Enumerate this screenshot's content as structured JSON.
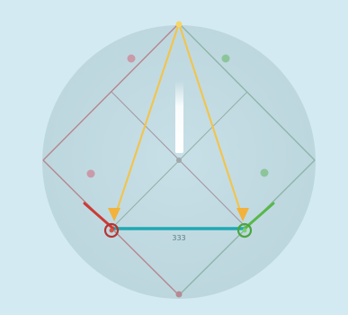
{
  "diagram": {
    "segment_label": "333",
    "colors": {
      "background": "#d4eaf2",
      "disc": "#c4dde5",
      "outline_left": "#b5878c",
      "outline_right": "#8eb5a8",
      "inner_lines": "#9aa6a8",
      "yellow_arrows": "#f2c44c",
      "base_segment": "#1fa8b2",
      "red": "#cc3b35",
      "green": "#58b84a",
      "white_bar": "#f7f7f0",
      "dot_pink": "#c99aa8",
      "dot_green": "#8cc59a"
    }
  }
}
